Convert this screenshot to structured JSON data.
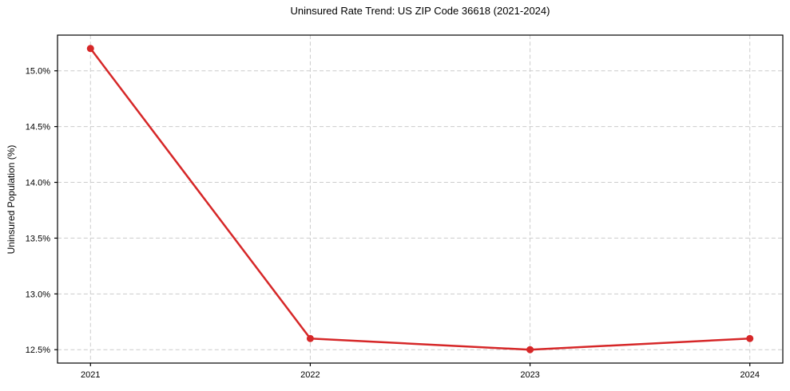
{
  "figure": {
    "title": "Uninsured Rate Trend: US ZIP Code 36618 (2021-2024)",
    "y_axis_label": "Uninsured Population (%)"
  },
  "chart_data": {
    "type": "line",
    "title": "Uninsured Rate Trend: US ZIP Code 36618 (2021-2024)",
    "xlabel": "",
    "ylabel": "Uninsured Population (%)",
    "x": [
      2021,
      2022,
      2023,
      2024
    ],
    "series": [
      {
        "name": "uninsured-rate",
        "values": [
          15.2,
          12.6,
          12.5,
          12.6
        ],
        "color": "#d62728",
        "marker": "circle"
      }
    ],
    "x_tick_labels": [
      "2021",
      "2022",
      "2023",
      "2024"
    ],
    "y_ticks": [
      12.5,
      13.0,
      13.5,
      14.0,
      14.5,
      15.0
    ],
    "y_tick_labels": [
      "12.5%",
      "13.0%",
      "13.5%",
      "14.0%",
      "14.5%",
      "15.0%"
    ],
    "xlim": [
      2020.85,
      2024.15
    ],
    "ylim": [
      12.38,
      15.32
    ],
    "grid": true,
    "grid_style": "dashed",
    "grid_color": "#cccccc",
    "axis_color": "#000000",
    "legend": "none",
    "background_color": "#ffffff"
  }
}
